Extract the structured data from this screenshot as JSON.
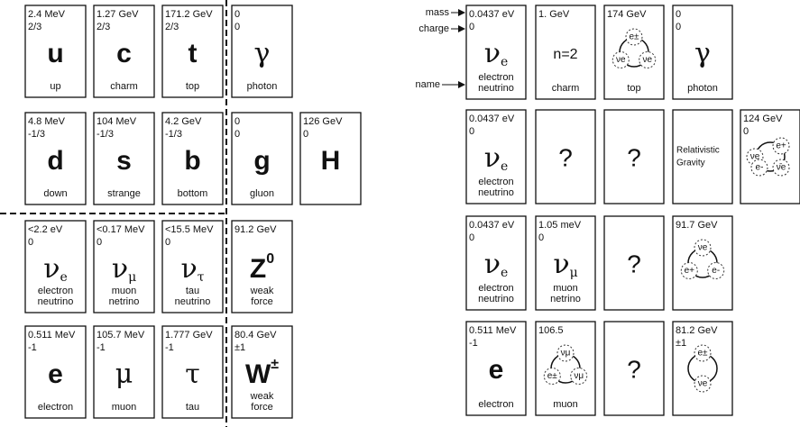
{
  "left": {
    "rows": [
      [
        {
          "mass": "2.4 MeV",
          "charge": "2/3",
          "symbol": "u",
          "name": [
            "up"
          ]
        },
        {
          "mass": "1.27 GeV",
          "charge": "2/3",
          "symbol": "c",
          "name": [
            "charm"
          ]
        },
        {
          "mass": "171.2 GeV",
          "charge": "2/3",
          "symbol": "t",
          "name": [
            "top"
          ]
        },
        {
          "mass": "0",
          "charge": "0",
          "symbol": "γ",
          "name": [
            "photon"
          ]
        }
      ],
      [
        {
          "mass": "4.8 MeV",
          "charge": "-1/3",
          "symbol": "d",
          "name": [
            "down"
          ]
        },
        {
          "mass": "104 MeV",
          "charge": "-1/3",
          "symbol": "s",
          "name": [
            "strange"
          ]
        },
        {
          "mass": "4.2 GeV",
          "charge": "-1/3",
          "symbol": "b",
          "name": [
            "bottom"
          ]
        },
        {
          "mass": "0",
          "charge": "0",
          "symbol": "g",
          "name": [
            "gluon"
          ]
        },
        {
          "mass": "126 GeV",
          "charge": "0",
          "symbol": "H"
        }
      ],
      [
        {
          "mass": "<2.2 eV",
          "charge": "0",
          "symbol": "ν",
          "sub": "e",
          "name": [
            "electron",
            "neutrino"
          ]
        },
        {
          "mass": "<0.17 MeV",
          "charge": "0",
          "symbol": "ν",
          "sub": "μ",
          "name": [
            "muon",
            "netrino"
          ]
        },
        {
          "mass": "<15.5 MeV",
          "charge": "0",
          "symbol": "ν",
          "sub": "τ",
          "name": [
            "tau",
            "neutrino"
          ]
        },
        {
          "mass": "91.2 GeV",
          "symbol": "Z",
          "sup": "0",
          "name": [
            "weak",
            "force"
          ]
        }
      ],
      [
        {
          "mass": "0.511 MeV",
          "charge": "-1",
          "symbol": "e",
          "name": [
            "electron"
          ]
        },
        {
          "mass": "105.7 MeV",
          "charge": "-1",
          "symbol": "μ",
          "name": [
            "muon"
          ]
        },
        {
          "mass": "1.777 GeV",
          "charge": "-1",
          "symbol": "τ",
          "name": [
            "tau"
          ]
        },
        {
          "mass": "80.4 GeV",
          "charge": "±1",
          "symbol": "W",
          "sup": "±",
          "name": [
            "weak",
            "force"
          ]
        }
      ]
    ]
  },
  "right": {
    "labels": {
      "mass": "mass",
      "charge": "charge",
      "name": "name"
    },
    "rows": [
      [
        {
          "mass": "0.0437 eV",
          "charge": "0",
          "symbol": "ν",
          "sub": "e",
          "name": [
            "electron",
            "neutrino"
          ]
        },
        {
          "mass": "1.    GeV",
          "center": "n=2",
          "name": [
            "charm"
          ]
        },
        {
          "mass": "174 GeV",
          "diagram": [
            "e±",
            "νe",
            "νe"
          ],
          "name": [
            "top"
          ]
        },
        {
          "mass": "0",
          "charge": "0",
          "symbol": "γ",
          "name": [
            "photon"
          ]
        }
      ],
      [
        {
          "mass": "0.0437 eV",
          "charge": "0",
          "symbol": "ν",
          "sub": "e",
          "name": [
            "electron",
            "neutrino"
          ]
        },
        {
          "center": "?"
        },
        {
          "center": "?"
        },
        {
          "note": [
            "Relativistic",
            "Gravity"
          ]
        },
        {
          "mass": "124 GeV",
          "charge": "0",
          "diagram": [
            "νe",
            "e+",
            "e-",
            "ν̄e"
          ]
        }
      ],
      [
        {
          "mass": "0.0437 eV",
          "charge": "0",
          "symbol": "ν",
          "sub": "e",
          "name": [
            "electron",
            "neutrino"
          ]
        },
        {
          "mass": "1.05 meV",
          "charge": "0",
          "symbol": "ν",
          "sub": "μ",
          "name": [
            "muon",
            "netrino"
          ]
        },
        {
          "center": "?"
        },
        {
          "mass": "91.7 GeV",
          "diagram": [
            "νe",
            "e+",
            "e-"
          ]
        }
      ],
      [
        {
          "mass": "0.511 MeV",
          "charge": "-1",
          "symbol": "e",
          "name": [
            "electron"
          ]
        },
        {
          "mass": "106.5",
          "diagram": [
            "νμ",
            "e±",
            "νμ"
          ],
          "name": [
            "muon"
          ]
        },
        {
          "center": "?"
        },
        {
          "mass": "81.2 GeV",
          "charge": "±1",
          "diagram": [
            "e±",
            "νe"
          ]
        }
      ]
    ]
  }
}
